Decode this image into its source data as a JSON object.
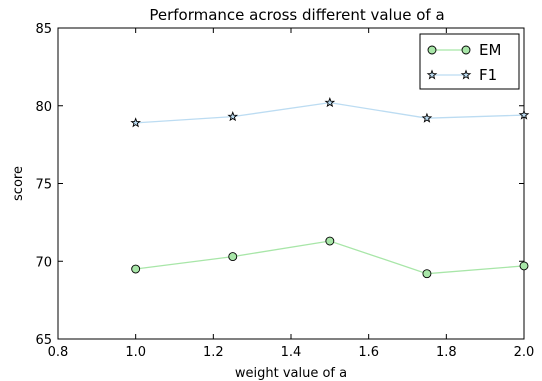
{
  "chart_data": {
    "type": "line",
    "title": "Performance across different value of a",
    "xlabel": "weight value of a",
    "ylabel": "score",
    "xlim": [
      0.8,
      2.0
    ],
    "ylim": [
      65,
      85
    ],
    "xticks": [
      "0.8",
      "1.0",
      "1.2",
      "1.4",
      "1.6",
      "1.8",
      "2.0"
    ],
    "yticks": [
      "65",
      "70",
      "75",
      "80",
      "85"
    ],
    "x": [
      1.0,
      1.25,
      1.5,
      1.75,
      2.0
    ],
    "series": [
      {
        "name": "EM",
        "values": [
          69.5,
          70.3,
          71.3,
          69.2,
          69.7
        ],
        "color": "#a8e6a8",
        "marker": "circle"
      },
      {
        "name": "F1",
        "values": [
          78.9,
          79.3,
          80.2,
          79.2,
          79.4
        ],
        "color": "#bcdcf2",
        "marker": "star"
      }
    ],
    "grid": false,
    "legend": "top-right"
  }
}
